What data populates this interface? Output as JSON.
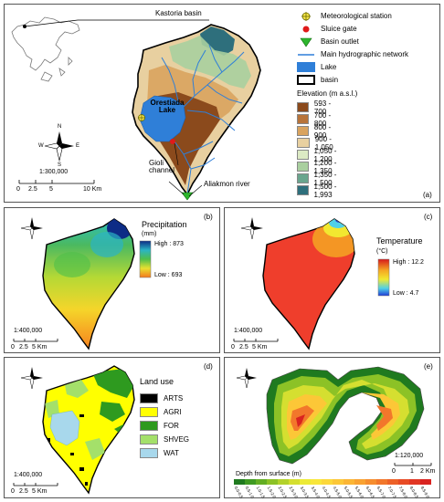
{
  "panel_a": {
    "tag": "(a)",
    "inset_label": "Kastoria basin",
    "lake_label": "Orestiada Lake",
    "scale_text": "1:300,000",
    "scale_ticks": [
      "0",
      "2.5",
      "5",
      "10 Km"
    ],
    "channel_label": "Gioli channel",
    "river_label": "Aliakmon river",
    "legend": {
      "meteo": "Meteorological station",
      "sluice": "Sluice gate",
      "outlet": "Basin outlet",
      "network": "Main hydrographic network",
      "lake": "Lake",
      "basin": "basin",
      "elevation_title": "Elevation (m a.s.l.)",
      "classes": [
        {
          "label": "593 - 700",
          "color": "#8b4a1c"
        },
        {
          "label": "700 - 800",
          "color": "#b8743a"
        },
        {
          "label": "800 - 900",
          "color": "#d9a35e"
        },
        {
          "label": "900 - 1,050",
          "color": "#e8d0a0"
        },
        {
          "label": "1,050 - 1,200",
          "color": "#dceac4"
        },
        {
          "label": "1,200 - 1,350",
          "color": "#a9cf9f"
        },
        {
          "label": "1,350 - 1,500",
          "color": "#6aa58e"
        },
        {
          "label": "1,500 - 1,993",
          "color": "#2e6f7c"
        }
      ]
    }
  },
  "panel_b": {
    "tag": "(b)",
    "title": "Precipitation",
    "unit": "(mm)",
    "high": "High : 873",
    "low": "Low : 693",
    "scale_text": "1:400,000",
    "scale_ticks": [
      "0",
      "2.5",
      "5 Km"
    ]
  },
  "panel_c": {
    "tag": "(c)",
    "title": "Temperature",
    "unit": "(°C)",
    "high": "High : 12.2",
    "low": "Low : 4.7",
    "scale_text": "1:400,000",
    "scale_ticks": [
      "0",
      "2.5",
      "5 Km"
    ]
  },
  "panel_d": {
    "tag": "(d)",
    "title": "Land use",
    "scale_text": "1:400,000",
    "scale_ticks": [
      "0",
      "2.5",
      "5 Km"
    ],
    "classes": [
      {
        "label": "ARTS",
        "color": "#000000"
      },
      {
        "label": "AGRI",
        "color": "#ffff00"
      },
      {
        "label": "FOR",
        "color": "#2e9a1f"
      },
      {
        "label": "SHVEG",
        "color": "#a4e06a"
      },
      {
        "label": "WAT",
        "color": "#a8d8ec"
      }
    ]
  },
  "panel_e": {
    "tag": "(e)",
    "scale_text": "1:120,000",
    "scale_ticks": [
      "0",
      "1",
      "2 Km"
    ],
    "depth_title": "Depth from surface (m)",
    "depth_classes": [
      "0.0-0.5",
      "0.5-1.0",
      "1.0-1.5",
      "1.5-2.0",
      "2.0-2.5",
      "2.5-3.0",
      "3.0-3.5",
      "3.5-4.0",
      "4.0-4.5",
      "4.5-5.0",
      "5.0-5.5",
      "5.5-6.0",
      "6.0-6.5",
      "6.5-7.0",
      "7.0-7.5",
      "7.5-8.0",
      "8.0-8.5",
      "8.5-9.0"
    ],
    "depth_colors": [
      "#1f7a1f",
      "#3f9a22",
      "#63ae23",
      "#8cc226",
      "#b3d22b",
      "#d5df30",
      "#ecea36",
      "#f8e63a",
      "#fcd83a",
      "#fcc737",
      "#fbb534",
      "#f9a231",
      "#f68d2e",
      "#f2772b",
      "#ed6128",
      "#e84b25",
      "#e13623",
      "#d92320"
    ]
  },
  "north_labels": {
    "n": "N",
    "s": "S",
    "e": "E",
    "w": "W"
  }
}
